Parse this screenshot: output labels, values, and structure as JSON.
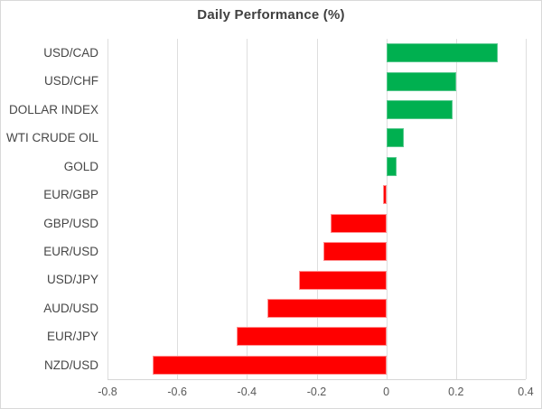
{
  "chart_data": {
    "type": "bar",
    "orientation": "horizontal",
    "title": "Daily Performance (%)",
    "categories": [
      "USD/CAD",
      "USD/CHF",
      "DOLLAR INDEX",
      "WTI CRUDE OIL",
      "GOLD",
      "EUR/GBP",
      "GBP/USD",
      "EUR/USD",
      "USD/JPY",
      "AUD/USD",
      "EUR/JPY",
      "NZD/USD"
    ],
    "values": [
      0.32,
      0.2,
      0.19,
      0.05,
      0.03,
      -0.01,
      -0.16,
      -0.18,
      -0.25,
      -0.34,
      -0.43,
      -0.67
    ],
    "xlim": [
      -0.8,
      0.4
    ],
    "xticks": [
      -0.8,
      -0.6,
      -0.4,
      -0.2,
      0,
      0.2,
      0.4
    ],
    "xtick_labels": [
      "-0.8",
      "-0.6",
      "-0.4",
      "-0.2",
      "0",
      "0.2",
      "0.4"
    ],
    "grid": "vertical-on",
    "legend": "none",
    "colors": {
      "positive_bar": "#00B050",
      "negative_bar": "#FF0000",
      "gridline": "#DEDEDE",
      "title_text": "#404040",
      "label_text": "#464646",
      "tick_text": "#595959",
      "frame_border": "#D9D9D9"
    }
  }
}
